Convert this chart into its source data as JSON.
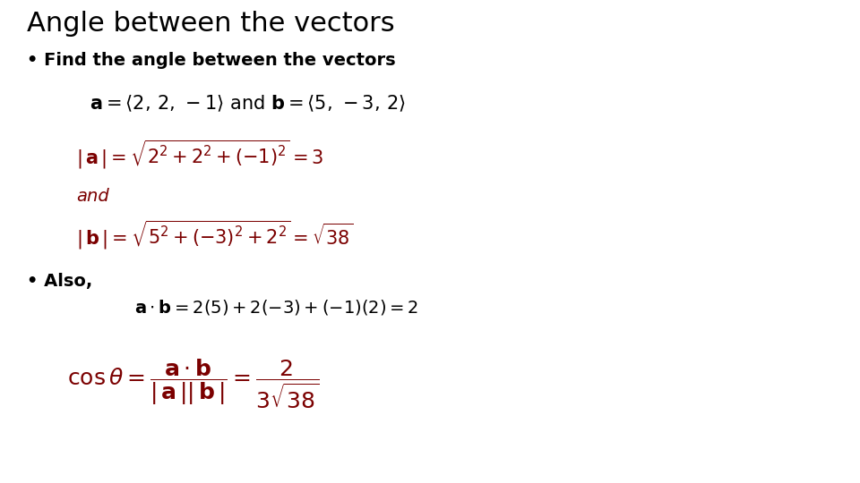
{
  "title": "Angle between the vectors",
  "title_fontsize": 22,
  "title_color": "#000000",
  "bullet1": "Find the angle between the vectors",
  "bullet1_fontsize": 14,
  "bullet1_color": "#000000",
  "vectors_line": "$\\mathbf{a} = \\langle 2,\\, 2,\\, -1\\rangle$ and $\\mathbf{b} = \\langle 5,\\, -3,\\, 2\\rangle$",
  "vectors_fontsize": 15,
  "formula_color": "#7B0000",
  "formula1": "$|\\,\\mathbf{a}\\,|= \\sqrt{2^2 + 2^2 + (-1)^2} = 3$",
  "formula1_fontsize": 15,
  "and_text": "and",
  "and_fontsize": 14,
  "formula2": "$|\\,\\mathbf{b}\\,|= \\sqrt{5^2 + (-3)^2 + 2^2} = \\sqrt{38}$",
  "formula2_fontsize": 15,
  "bullet2": "Also,",
  "bullet2_fontsize": 14,
  "bullet2_color": "#000000",
  "dot_product": "$\\mathbf{a} \\cdot \\mathbf{b} = 2(5) + 2(-3) +(-1)(2) = 2$",
  "dot_product_fontsize": 14,
  "dot_product_color": "#000000",
  "cos_formula": "$\\cos\\theta = \\dfrac{\\mathbf{a} \\cdot \\mathbf{b}}{|\\,\\mathbf{a}\\,||\\,\\mathbf{b}\\,|} = \\dfrac{2}{3\\sqrt{38}}$",
  "cos_formula_fontsize": 18,
  "cos_formula_color": "#7B0000",
  "background_color": "#ffffff"
}
